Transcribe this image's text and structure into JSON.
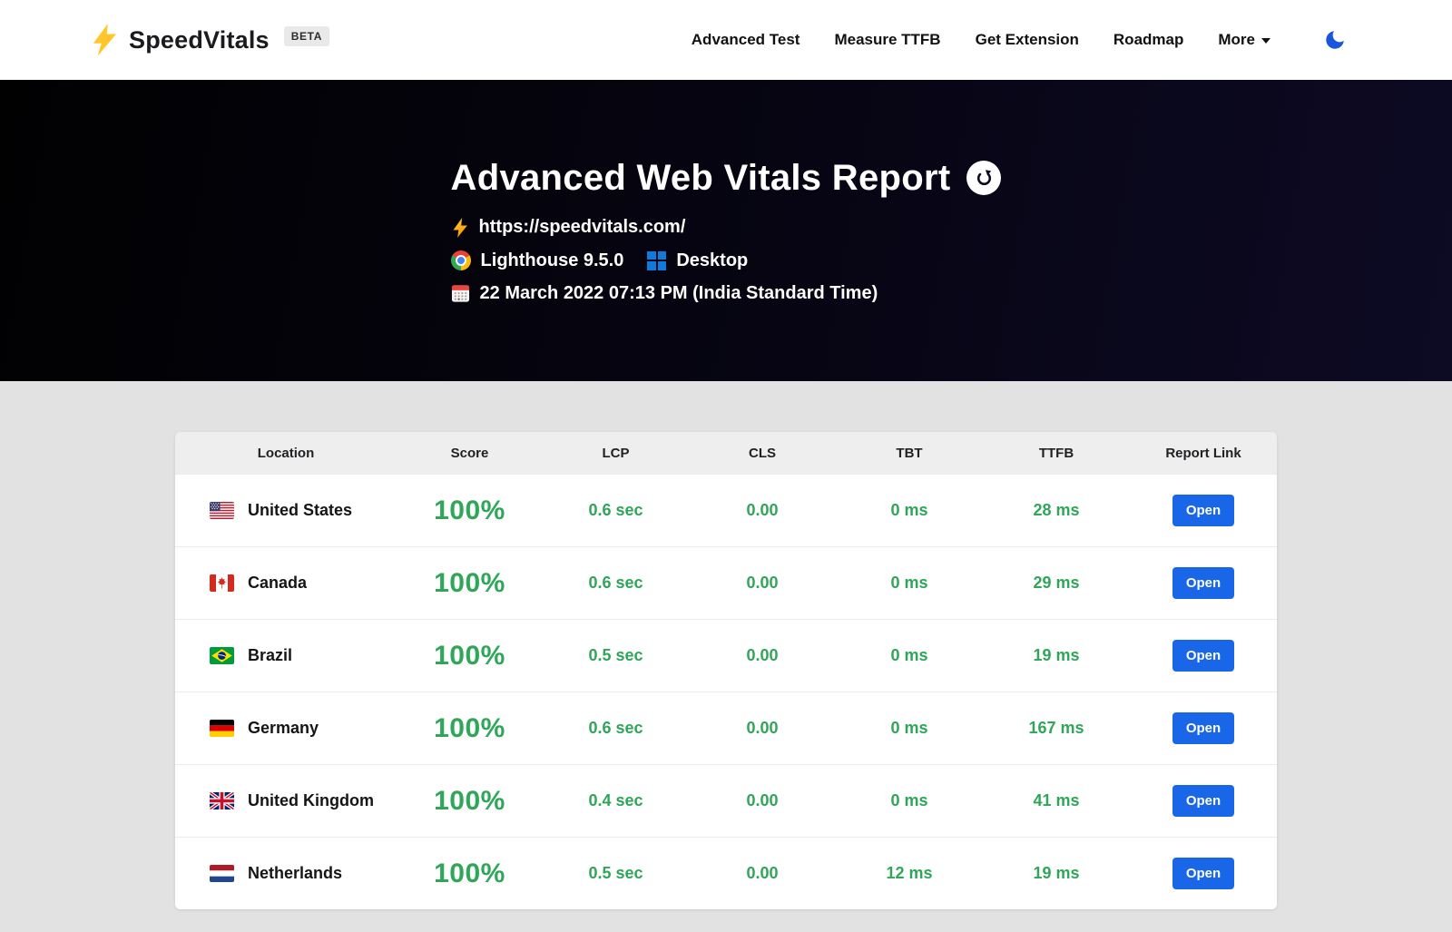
{
  "brand": {
    "name": "SpeedVitals",
    "badge": "BETA"
  },
  "nav": {
    "items": [
      "Advanced Test",
      "Measure TTFB",
      "Get Extension",
      "Roadmap"
    ],
    "more_label": "More"
  },
  "hero": {
    "title": "Advanced Web Vitals Report",
    "url": "https://speedvitals.com/",
    "engine": "Lighthouse 9.5.0",
    "device": "Desktop",
    "timestamp": "22 March 2022 07:13 PM (India Standard Time)"
  },
  "table": {
    "columns": [
      "Location",
      "Score",
      "LCP",
      "CLS",
      "TBT",
      "TTFB",
      "Report Link"
    ],
    "open_label": "Open",
    "rows": [
      {
        "flag": "us",
        "location": "United States",
        "score": "100%",
        "lcp": "0.6 sec",
        "cls": "0.00",
        "tbt": "0 ms",
        "ttfb": "28 ms"
      },
      {
        "flag": "ca",
        "location": "Canada",
        "score": "100%",
        "lcp": "0.6 sec",
        "cls": "0.00",
        "tbt": "0 ms",
        "ttfb": "29 ms"
      },
      {
        "flag": "br",
        "location": "Brazil",
        "score": "100%",
        "lcp": "0.5 sec",
        "cls": "0.00",
        "tbt": "0 ms",
        "ttfb": "19 ms"
      },
      {
        "flag": "de",
        "location": "Germany",
        "score": "100%",
        "lcp": "0.6 sec",
        "cls": "0.00",
        "tbt": "0 ms",
        "ttfb": "167 ms"
      },
      {
        "flag": "gb",
        "location": "United Kingdom",
        "score": "100%",
        "lcp": "0.4 sec",
        "cls": "0.00",
        "tbt": "0 ms",
        "ttfb": "41 ms"
      },
      {
        "flag": "nl",
        "location": "Netherlands",
        "score": "100%",
        "lcp": "0.5 sec",
        "cls": "0.00",
        "tbt": "12 ms",
        "ttfb": "19 ms"
      }
    ]
  },
  "icons": {
    "logo": "lightning-bolt",
    "url_prefix": "lightning-bolt",
    "engine": "chrome-logo",
    "device": "windows-logo",
    "date": "calendar",
    "title_action": "refresh-circular-arrow",
    "theme_toggle": "crescent-moon",
    "more": "chevron-down"
  },
  "colors": {
    "metric_green": "#2fa658",
    "button_blue": "#1a66e8",
    "moon_blue": "#1a56db",
    "bolt_yellow": "#ffc72c",
    "page_bg": "#e2e2e2",
    "hero_gradient_start": "#010102",
    "hero_gradient_end": "#0d0a24"
  }
}
